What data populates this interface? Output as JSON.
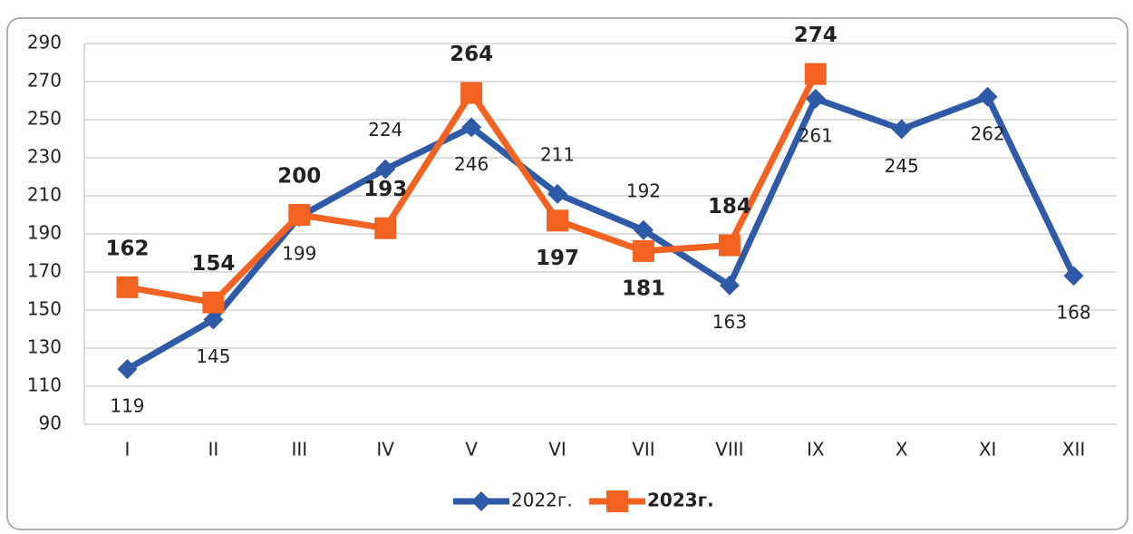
{
  "chart_data": {
    "type": "line",
    "categories": [
      "I",
      "II",
      "III",
      "IV",
      "V",
      "VI",
      "VII",
      "VIII",
      "IX",
      "X",
      "XI",
      "XII"
    ],
    "series": [
      {
        "name": "2022г.",
        "color": "#2e5aa8",
        "values": [
          119,
          145,
          199,
          224,
          246,
          211,
          192,
          163,
          261,
          245,
          262,
          168
        ]
      },
      {
        "name": "2023г.",
        "color": "#f26322",
        "values": [
          162,
          154,
          200,
          193,
          264,
          197,
          181,
          184,
          274,
          null,
          null,
          null
        ]
      }
    ],
    "ylim": [
      90,
      290
    ],
    "yticks": [
      90,
      110,
      130,
      150,
      170,
      190,
      210,
      230,
      250,
      270,
      290
    ],
    "grid": true,
    "legend": "bottom"
  }
}
